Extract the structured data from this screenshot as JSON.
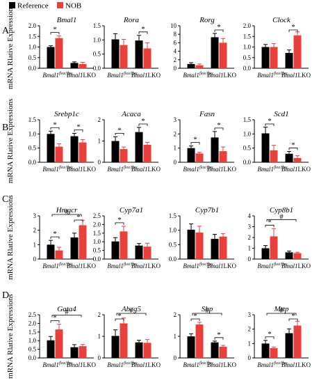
{
  "legend": [
    {
      "label": "Reference",
      "color": "#000000"
    },
    {
      "label": "NOB",
      "color": "#e8403a"
    }
  ],
  "y_axis_title": "mRNA Rlative Expressions",
  "x_label_main": "Bmal1",
  "x_label_flox": "flox/flox",
  "x_label_lko": "LKO",
  "panels": [
    {
      "letter": "A"
    },
    {
      "letter": "B"
    },
    {
      "letter": "C"
    },
    {
      "letter": "D"
    }
  ],
  "chart_data": [
    {
      "panel": "A",
      "type": "bar",
      "title": "Bmal1",
      "categories": [
        "Bmal1flox/flox",
        "Bmal1LKO"
      ],
      "ylim": [
        0,
        2.0
      ],
      "yticks": [
        0.0,
        0.5,
        1.0,
        1.5,
        2.0
      ],
      "series": [
        {
          "name": "Reference",
          "values": [
            1.0,
            0.25
          ],
          "errors": [
            0.06,
            0.05
          ]
        },
        {
          "name": "NOB",
          "values": [
            1.42,
            0.2
          ],
          "errors": [
            0.1,
            0.08
          ]
        }
      ],
      "significance": [
        {
          "between": "Reference-NOB",
          "group": 0,
          "label": "*"
        }
      ]
    },
    {
      "panel": "A",
      "type": "bar",
      "title": "Rora",
      "categories": [
        "Bmal1flox/flox",
        "Bmal1LKO"
      ],
      "ylim": [
        0,
        1.5
      ],
      "yticks": [
        0.0,
        0.5,
        1.0,
        1.5
      ],
      "series": [
        {
          "name": "Reference",
          "values": [
            1.02,
            0.98
          ],
          "errors": [
            0.2,
            0.18
          ]
        },
        {
          "name": "NOB",
          "values": [
            0.82,
            0.7
          ],
          "errors": [
            0.2,
            0.2
          ]
        }
      ],
      "significance": [
        {
          "between": "Reference-NOB",
          "group": 1,
          "label": "*"
        }
      ]
    },
    {
      "panel": "A",
      "type": "bar",
      "title": "Rorg",
      "categories": [
        "Bmal1flox/flox",
        "Bmal1LKO"
      ],
      "ylim": [
        0,
        10
      ],
      "yticks": [
        0,
        2,
        4,
        6,
        8,
        10
      ],
      "series": [
        {
          "name": "Reference",
          "values": [
            1.0,
            7.3
          ],
          "errors": [
            0.3,
            0.9
          ]
        },
        {
          "name": "NOB",
          "values": [
            0.7,
            6.0
          ],
          "errors": [
            0.3,
            1.0
          ]
        }
      ],
      "significance": [
        {
          "between": "Reference-NOB",
          "group": 1,
          "label": "*"
        }
      ]
    },
    {
      "panel": "A",
      "type": "bar",
      "title": "Clock",
      "categories": [
        "Bmal1flox/flox",
        "Bmal1LKO"
      ],
      "ylim": [
        0,
        2.0
      ],
      "yticks": [
        0.0,
        0.5,
        1.0,
        1.5,
        2.0
      ],
      "series": [
        {
          "name": "Reference",
          "values": [
            1.0,
            0.72
          ],
          "errors": [
            0.12,
            0.14
          ]
        },
        {
          "name": "NOB",
          "values": [
            1.0,
            1.55
          ],
          "errors": [
            0.16,
            0.16
          ]
        }
      ],
      "significance": [
        {
          "between": "Reference-NOB",
          "group": 1,
          "label": "*"
        }
      ]
    },
    {
      "panel": "B",
      "type": "bar",
      "title": "Srebp1c",
      "categories": [
        "Bmal1flox/flox",
        "Bmal1LKO"
      ],
      "ylim": [
        0,
        1.5
      ],
      "yticks": [
        0.0,
        0.5,
        1.0,
        1.5
      ],
      "series": [
        {
          "name": "Reference",
          "values": [
            1.0,
            0.92
          ],
          "errors": [
            0.1,
            0.1
          ]
        },
        {
          "name": "NOB",
          "values": [
            0.55,
            0.7
          ],
          "errors": [
            0.1,
            0.1
          ]
        }
      ],
      "significance": [
        {
          "between": "Reference-NOB",
          "group": 0,
          "label": "*"
        },
        {
          "between": "Reference-NOB",
          "group": 1,
          "label": "*"
        }
      ]
    },
    {
      "panel": "B",
      "type": "bar",
      "title": "Acaca",
      "categories": [
        "Bmal1flox/flox",
        "Bmal1LKO"
      ],
      "ylim": [
        0,
        2
      ],
      "yticks": [
        0,
        1,
        2
      ],
      "series": [
        {
          "name": "Reference",
          "values": [
            1.0,
            1.42
          ],
          "errors": [
            0.2,
            0.22
          ]
        },
        {
          "name": "NOB",
          "values": [
            0.62,
            0.82
          ],
          "errors": [
            0.1,
            0.12
          ]
        }
      ],
      "significance": [
        {
          "between": "Reference-NOB",
          "group": 0,
          "label": "*"
        },
        {
          "between": "Reference-NOB",
          "group": 1,
          "label": "*"
        }
      ]
    },
    {
      "panel": "B",
      "type": "bar",
      "title": "Fasn",
      "categories": [
        "Bmal1flox/flox",
        "Bmal1LKO"
      ],
      "ylim": [
        0,
        3
      ],
      "yticks": [
        0,
        1,
        2,
        3
      ],
      "series": [
        {
          "name": "Reference",
          "values": [
            1.0,
            1.75
          ],
          "errors": [
            0.15,
            0.42
          ]
        },
        {
          "name": "NOB",
          "values": [
            0.62,
            0.78
          ],
          "errors": [
            0.08,
            0.3
          ]
        }
      ],
      "significance": [
        {
          "between": "Reference-NOB",
          "group": 0,
          "label": "*"
        },
        {
          "between": "Reference-NOB",
          "group": 1,
          "label": "*"
        }
      ]
    },
    {
      "panel": "B",
      "type": "bar",
      "title": "Scd1",
      "categories": [
        "Bmal1flox/flox",
        "Bmal1LKO"
      ],
      "ylim": [
        0,
        1.5
      ],
      "yticks": [
        0.0,
        0.5,
        1.0,
        1.5
      ],
      "series": [
        {
          "name": "Reference",
          "values": [
            1.02,
            0.3
          ],
          "errors": [
            0.22,
            0.08
          ]
        },
        {
          "name": "NOB",
          "values": [
            0.42,
            0.15
          ],
          "errors": [
            0.18,
            0.08
          ]
        }
      ],
      "significance": [
        {
          "between": "Reference-NOB",
          "group": 0,
          "label": "*"
        },
        {
          "between": "Reference-NOB",
          "group": 1,
          "label": "*"
        }
      ]
    },
    {
      "panel": "C",
      "type": "bar",
      "title": "Hmgcr",
      "categories": [
        "Bmal1flox/flox",
        "Bmal1LKO"
      ],
      "ylim": [
        0,
        3
      ],
      "yticks": [
        0,
        1,
        2,
        3
      ],
      "series": [
        {
          "name": "Reference",
          "values": [
            1.0,
            1.5
          ],
          "errors": [
            0.3,
            0.3
          ]
        },
        {
          "name": "NOB",
          "values": [
            0.6,
            2.35
          ],
          "errors": [
            0.22,
            0.35
          ]
        }
      ],
      "significance": [
        {
          "between": "Reference-NOB",
          "group": 0,
          "label": "*"
        },
        {
          "between": "Reference-NOB",
          "group": 1,
          "label": "*"
        },
        {
          "between": "genotype",
          "label": "#"
        }
      ]
    },
    {
      "panel": "C",
      "type": "bar",
      "title": "Cyp7a1",
      "categories": [
        "Bmal1flox/flox",
        "Bmal1LKO"
      ],
      "ylim": [
        0,
        2.5
      ],
      "yticks": [
        0.0,
        0.5,
        1.0,
        1.5,
        2.0,
        2.5
      ],
      "series": [
        {
          "name": "Reference",
          "values": [
            1.02,
            0.78
          ],
          "errors": [
            0.22,
            0.12
          ]
        },
        {
          "name": "NOB",
          "values": [
            1.6,
            0.72
          ],
          "errors": [
            0.3,
            0.2
          ]
        }
      ],
      "significance": [
        {
          "between": "Reference-NOB",
          "group": 0,
          "label": "*"
        }
      ]
    },
    {
      "panel": "C",
      "type": "bar",
      "title": "Cyp7b1",
      "categories": [
        "Bmal1flox/flox",
        "Bmal1LKO"
      ],
      "ylim": [
        0,
        1.5
      ],
      "yticks": [
        0.0,
        0.5,
        1.0,
        1.5
      ],
      "series": [
        {
          "name": "Reference",
          "values": [
            1.02,
            0.7
          ],
          "errors": [
            0.2,
            0.16
          ]
        },
        {
          "name": "NOB",
          "values": [
            0.92,
            0.78
          ],
          "errors": [
            0.22,
            0.1
          ]
        }
      ],
      "significance": []
    },
    {
      "panel": "C",
      "type": "bar",
      "title": "Cyp8b1",
      "categories": [
        "Bmal1flox/flox",
        "Bmal1LKO"
      ],
      "ylim": [
        0,
        4
      ],
      "yticks": [
        0,
        1,
        2,
        3,
        4
      ],
      "series": [
        {
          "name": "Reference",
          "values": [
            1.0,
            0.62
          ],
          "errors": [
            0.25,
            0.12
          ]
        },
        {
          "name": "NOB",
          "values": [
            2.1,
            0.55
          ],
          "errors": [
            0.72,
            0.08
          ]
        }
      ],
      "significance": [
        {
          "between": "Reference-NOB",
          "group": 0,
          "label": "*"
        },
        {
          "between": "genotype",
          "label": "#"
        }
      ]
    },
    {
      "panel": "D",
      "type": "bar",
      "title": "Gata4",
      "categories": [
        "Bmal1flox/flox",
        "Bmal1LKO"
      ],
      "ylim": [
        0,
        2.5
      ],
      "yticks": [
        0.0,
        0.5,
        1.0,
        1.5,
        2.0,
        2.5
      ],
      "series": [
        {
          "name": "Reference",
          "values": [
            1.02,
            0.62
          ],
          "errors": [
            0.22,
            0.15
          ]
        },
        {
          "name": "NOB",
          "values": [
            1.65,
            0.68
          ],
          "errors": [
            0.3,
            0.1
          ]
        }
      ],
      "significance": [
        {
          "between": "Reference-NOB",
          "group": 0,
          "label": "*"
        },
        {
          "between": "genotype",
          "label": "#"
        }
      ]
    },
    {
      "panel": "D",
      "type": "bar",
      "title": "Abcg5",
      "categories": [
        "Bmal1flox/flox",
        "Bmal1LKO"
      ],
      "ylim": [
        0,
        2
      ],
      "yticks": [
        0,
        1,
        2
      ],
      "series": [
        {
          "name": "Reference",
          "values": [
            1.02,
            0.72
          ],
          "errors": [
            0.28,
            0.1
          ]
        },
        {
          "name": "NOB",
          "values": [
            1.6,
            0.7
          ],
          "errors": [
            0.25,
            0.15
          ]
        }
      ],
      "significance": [
        {
          "between": "Reference-NOB",
          "group": 0,
          "label": "*"
        },
        {
          "between": "genotype",
          "label": "#"
        }
      ]
    },
    {
      "panel": "D",
      "type": "bar",
      "title": "Shp",
      "categories": [
        "Bmal1flox/flox",
        "Bmal1LKO"
      ],
      "ylim": [
        0,
        2
      ],
      "yticks": [
        0,
        1,
        2
      ],
      "series": [
        {
          "name": "Reference",
          "values": [
            1.0,
            0.72
          ],
          "errors": [
            0.12,
            0.06
          ]
        },
        {
          "name": "NOB",
          "values": [
            1.55,
            0.52
          ],
          "errors": [
            0.1,
            0.06
          ]
        }
      ],
      "significance": [
        {
          "between": "Reference-NOB",
          "group": 0,
          "label": "*"
        },
        {
          "between": "Reference-NOB",
          "group": 1,
          "label": "*"
        },
        {
          "between": "genotype",
          "label": "#"
        }
      ]
    },
    {
      "panel": "D",
      "type": "bar",
      "title": "Mttp",
      "categories": [
        "Bmal1flox/flox",
        "Bmal1LKO"
      ],
      "ylim": [
        0,
        3
      ],
      "yticks": [
        0,
        1,
        2,
        3
      ],
      "series": [
        {
          "name": "Reference",
          "values": [
            1.0,
            1.72
          ],
          "errors": [
            0.22,
            0.3
          ]
        },
        {
          "name": "NOB",
          "values": [
            0.68,
            2.25
          ],
          "errors": [
            0.08,
            0.3
          ]
        }
      ],
      "significance": [
        {
          "between": "Reference-NOB",
          "group": 0,
          "label": "*"
        },
        {
          "between": "Reference-NOB",
          "group": 1,
          "label": "*"
        },
        {
          "between": "genotype",
          "label": "#"
        }
      ]
    }
  ]
}
